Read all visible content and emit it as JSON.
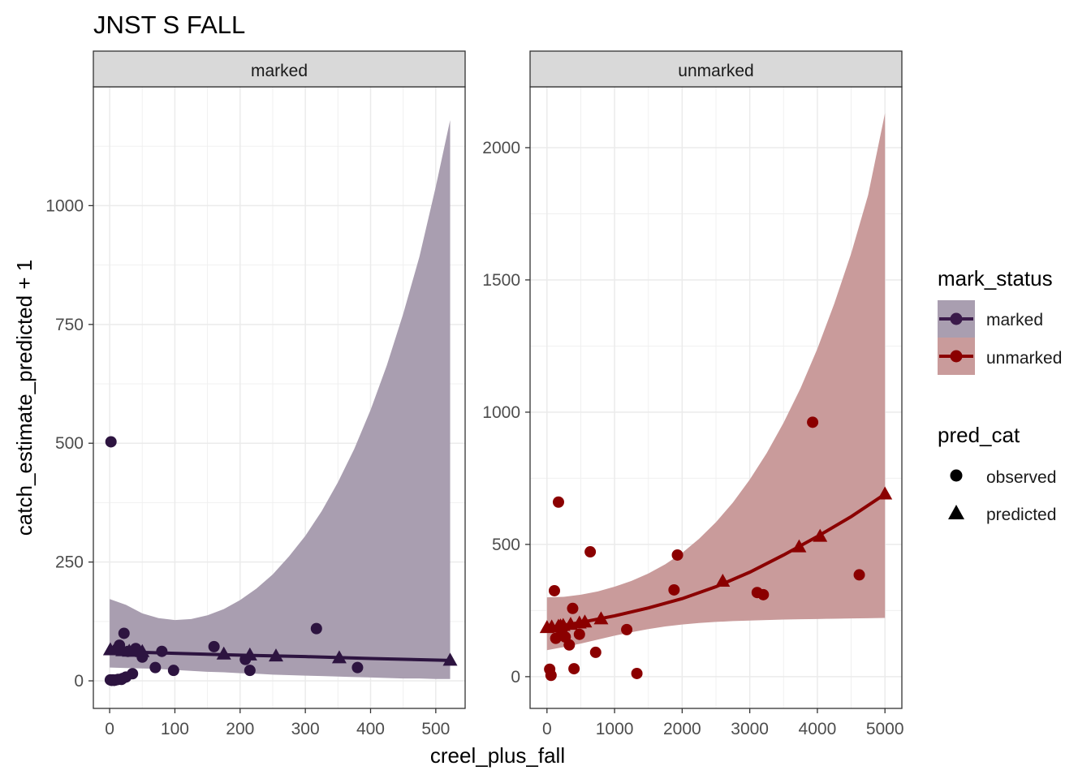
{
  "title": "JNST S FALL",
  "xlabel": "creel_plus_fall",
  "ylabel": "catch_estimate_predicted + 1",
  "legend": {
    "mark_status_title": "mark_status",
    "mark_status_items": [
      {
        "label": "marked",
        "line_color": "#3a1a4a",
        "ribbon_color": "#a99eb0"
      },
      {
        "label": "unmarked",
        "line_color": "#8b0000",
        "ribbon_color": "#c99b9b"
      }
    ],
    "pred_cat_title": "pred_cat",
    "pred_cat_items": [
      {
        "label": "observed",
        "shape": "circle"
      },
      {
        "label": "predicted",
        "shape": "triangle"
      }
    ]
  },
  "chart_data": [
    {
      "type": "scatter",
      "panel": "marked",
      "color": "#2d1440",
      "ribbon_color": "#a99eb0",
      "xlim": [
        -25,
        545
      ],
      "ylim": [
        -58,
        1250
      ],
      "xticks": [
        0,
        100,
        200,
        300,
        400,
        500
      ],
      "yticks": [
        0,
        250,
        500,
        750,
        1000
      ],
      "observed": [
        {
          "x": 2,
          "y": 503
        },
        {
          "x": 1,
          "y": 2
        },
        {
          "x": 3,
          "y": 1
        },
        {
          "x": 5,
          "y": 2
        },
        {
          "x": 7,
          "y": 1
        },
        {
          "x": 10,
          "y": 2
        },
        {
          "x": 12,
          "y": 68
        },
        {
          "x": 13,
          "y": 3
        },
        {
          "x": 15,
          "y": 75
        },
        {
          "x": 18,
          "y": 3
        },
        {
          "x": 20,
          "y": 5
        },
        {
          "x": 22,
          "y": 100
        },
        {
          "x": 25,
          "y": 8
        },
        {
          "x": 28,
          "y": 62
        },
        {
          "x": 35,
          "y": 15
        },
        {
          "x": 40,
          "y": 68
        },
        {
          "x": 50,
          "y": 50
        },
        {
          "x": 70,
          "y": 28
        },
        {
          "x": 80,
          "y": 62
        },
        {
          "x": 98,
          "y": 22
        },
        {
          "x": 160,
          "y": 72
        },
        {
          "x": 208,
          "y": 45
        },
        {
          "x": 215,
          "y": 22
        },
        {
          "x": 317,
          "y": 110
        },
        {
          "x": 380,
          "y": 28
        }
      ],
      "predicted": [
        {
          "x": 1,
          "y": 65
        },
        {
          "x": 10,
          "y": 65
        },
        {
          "x": 20,
          "y": 63
        },
        {
          "x": 30,
          "y": 62
        },
        {
          "x": 40,
          "y": 62
        },
        {
          "x": 50,
          "y": 61
        },
        {
          "x": 175,
          "y": 56
        },
        {
          "x": 215,
          "y": 54
        },
        {
          "x": 255,
          "y": 52
        },
        {
          "x": 352,
          "y": 48
        },
        {
          "x": 522,
          "y": 43
        }
      ],
      "fit": [
        {
          "x": 0,
          "y": 62
        },
        {
          "x": 100,
          "y": 58
        },
        {
          "x": 200,
          "y": 54
        },
        {
          "x": 300,
          "y": 51
        },
        {
          "x": 400,
          "y": 47
        },
        {
          "x": 522,
          "y": 43
        }
      ],
      "ribbon": [
        {
          "x": 0,
          "lo": 28,
          "hi": 172
        },
        {
          "x": 25,
          "lo": 27,
          "hi": 160
        },
        {
          "x": 50,
          "lo": 26,
          "hi": 142
        },
        {
          "x": 75,
          "lo": 25,
          "hi": 132
        },
        {
          "x": 100,
          "lo": 23,
          "hi": 128
        },
        {
          "x": 125,
          "lo": 21,
          "hi": 130
        },
        {
          "x": 150,
          "lo": 19,
          "hi": 138
        },
        {
          "x": 175,
          "lo": 18,
          "hi": 151
        },
        {
          "x": 200,
          "lo": 16,
          "hi": 170
        },
        {
          "x": 225,
          "lo": 15,
          "hi": 194
        },
        {
          "x": 250,
          "lo": 13,
          "hi": 224
        },
        {
          "x": 275,
          "lo": 12,
          "hi": 262
        },
        {
          "x": 300,
          "lo": 11,
          "hi": 305
        },
        {
          "x": 325,
          "lo": 10,
          "hi": 357
        },
        {
          "x": 350,
          "lo": 9,
          "hi": 418
        },
        {
          "x": 375,
          "lo": 8,
          "hi": 488
        },
        {
          "x": 400,
          "lo": 7,
          "hi": 570
        },
        {
          "x": 425,
          "lo": 6,
          "hi": 664
        },
        {
          "x": 450,
          "lo": 5,
          "hi": 772
        },
        {
          "x": 475,
          "lo": 5,
          "hi": 893
        },
        {
          "x": 500,
          "lo": 4,
          "hi": 1040
        },
        {
          "x": 522,
          "lo": 4,
          "hi": 1180
        }
      ]
    },
    {
      "type": "scatter",
      "panel": "unmarked",
      "color": "#8b0000",
      "ribbon_color": "#c99b9b",
      "xlim": [
        -250,
        5250
      ],
      "ylim": [
        -120,
        2230
      ],
      "xticks": [
        0,
        1000,
        2000,
        3000,
        4000,
        5000
      ],
      "yticks": [
        0,
        500,
        1000,
        1500,
        2000
      ],
      "observed": [
        {
          "x": 40,
          "y": 28
        },
        {
          "x": 60,
          "y": 5
        },
        {
          "x": 110,
          "y": 325
        },
        {
          "x": 130,
          "y": 145
        },
        {
          "x": 170,
          "y": 660
        },
        {
          "x": 220,
          "y": 165
        },
        {
          "x": 270,
          "y": 150
        },
        {
          "x": 330,
          "y": 120
        },
        {
          "x": 380,
          "y": 258
        },
        {
          "x": 400,
          "y": 30
        },
        {
          "x": 480,
          "y": 160
        },
        {
          "x": 640,
          "y": 472
        },
        {
          "x": 720,
          "y": 92
        },
        {
          "x": 1180,
          "y": 178
        },
        {
          "x": 1330,
          "y": 12
        },
        {
          "x": 1880,
          "y": 328
        },
        {
          "x": 1930,
          "y": 460
        },
        {
          "x": 3110,
          "y": 318
        },
        {
          "x": 3200,
          "y": 310
        },
        {
          "x": 3930,
          "y": 962
        },
        {
          "x": 4620,
          "y": 385
        }
      ],
      "predicted": [
        {
          "x": 0,
          "y": 185
        },
        {
          "x": 70,
          "y": 187
        },
        {
          "x": 170,
          "y": 190
        },
        {
          "x": 200,
          "y": 191
        },
        {
          "x": 240,
          "y": 193
        },
        {
          "x": 350,
          "y": 197
        },
        {
          "x": 480,
          "y": 202
        },
        {
          "x": 560,
          "y": 206
        },
        {
          "x": 800,
          "y": 218
        },
        {
          "x": 2600,
          "y": 360
        },
        {
          "x": 3730,
          "y": 490
        },
        {
          "x": 4040,
          "y": 530
        },
        {
          "x": 5000,
          "y": 690
        }
      ],
      "fit": [
        {
          "x": 0,
          "y": 185
        },
        {
          "x": 500,
          "y": 205
        },
        {
          "x": 1000,
          "y": 230
        },
        {
          "x": 1500,
          "y": 260
        },
        {
          "x": 2000,
          "y": 295
        },
        {
          "x": 2500,
          "y": 340
        },
        {
          "x": 3000,
          "y": 395
        },
        {
          "x": 3500,
          "y": 460
        },
        {
          "x": 4000,
          "y": 530
        },
        {
          "x": 4500,
          "y": 605
        },
        {
          "x": 5000,
          "y": 690
        }
      ],
      "ribbon": [
        {
          "x": 0,
          "lo": 100,
          "hi": 300
        },
        {
          "x": 250,
          "lo": 112,
          "hi": 302
        },
        {
          "x": 500,
          "lo": 125,
          "hi": 310
        },
        {
          "x": 750,
          "lo": 140,
          "hi": 322
        },
        {
          "x": 1000,
          "lo": 155,
          "hi": 340
        },
        {
          "x": 1250,
          "lo": 168,
          "hi": 362
        },
        {
          "x": 1500,
          "lo": 180,
          "hi": 390
        },
        {
          "x": 1750,
          "lo": 190,
          "hi": 425
        },
        {
          "x": 2000,
          "lo": 197,
          "hi": 468
        },
        {
          "x": 2250,
          "lo": 203,
          "hi": 521
        },
        {
          "x": 2500,
          "lo": 207,
          "hi": 584
        },
        {
          "x": 2750,
          "lo": 210,
          "hi": 658
        },
        {
          "x": 3000,
          "lo": 212,
          "hi": 745
        },
        {
          "x": 3250,
          "lo": 214,
          "hi": 845
        },
        {
          "x": 3500,
          "lo": 216,
          "hi": 960
        },
        {
          "x": 3750,
          "lo": 217,
          "hi": 1090
        },
        {
          "x": 4000,
          "lo": 218,
          "hi": 1240
        },
        {
          "x": 4250,
          "lo": 219,
          "hi": 1410
        },
        {
          "x": 4500,
          "lo": 220,
          "hi": 1600
        },
        {
          "x": 4750,
          "lo": 221,
          "hi": 1820
        },
        {
          "x": 5000,
          "lo": 222,
          "hi": 2130
        }
      ]
    }
  ]
}
